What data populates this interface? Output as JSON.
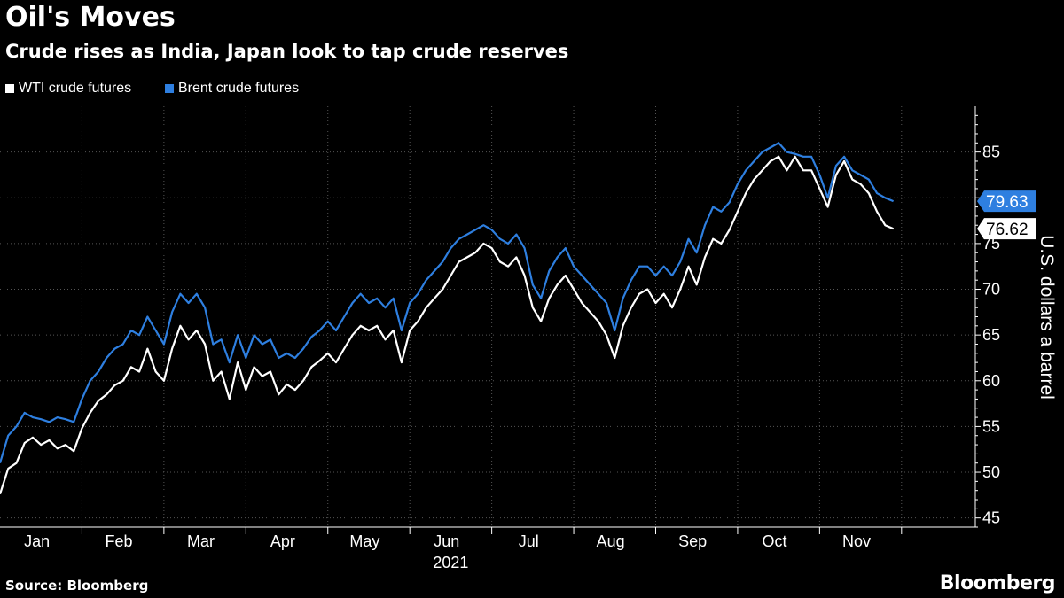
{
  "chart_data": {
    "type": "line",
    "title": "Oil's Moves",
    "subtitle": "Crude rises as India, Japan look to tap crude reserves",
    "ylabel": "U.S. dollars a barrel",
    "year_label": "2021",
    "ylim": [
      44,
      90
    ],
    "yticks": [
      45,
      50,
      55,
      60,
      65,
      70,
      75,
      80,
      85
    ],
    "months": [
      "Jan",
      "Feb",
      "Mar",
      "Apr",
      "May",
      "Jun",
      "Jul",
      "Aug",
      "Sep",
      "Oct",
      "Nov"
    ],
    "x_range": [
      0,
      11.9
    ],
    "grid": true,
    "legend_position": "top-left",
    "series": [
      {
        "name": "WTI crude futures",
        "color": "#ffffff",
        "last_value": "76.62",
        "points": [
          [
            0.0,
            47.6
          ],
          [
            0.1,
            50.4
          ],
          [
            0.2,
            51.0
          ],
          [
            0.3,
            53.2
          ],
          [
            0.4,
            53.8
          ],
          [
            0.5,
            53.0
          ],
          [
            0.6,
            53.5
          ],
          [
            0.7,
            52.6
          ],
          [
            0.8,
            53.0
          ],
          [
            0.9,
            52.3
          ],
          [
            1.0,
            54.8
          ],
          [
            1.1,
            56.5
          ],
          [
            1.2,
            57.8
          ],
          [
            1.3,
            58.5
          ],
          [
            1.4,
            59.5
          ],
          [
            1.5,
            60.0
          ],
          [
            1.6,
            61.5
          ],
          [
            1.7,
            61.0
          ],
          [
            1.8,
            63.5
          ],
          [
            1.9,
            61.0
          ],
          [
            2.0,
            60.0
          ],
          [
            2.1,
            63.5
          ],
          [
            2.2,
            66.0
          ],
          [
            2.3,
            64.5
          ],
          [
            2.4,
            65.5
          ],
          [
            2.5,
            64.0
          ],
          [
            2.6,
            60.0
          ],
          [
            2.7,
            61.0
          ],
          [
            2.8,
            58.0
          ],
          [
            2.9,
            62.0
          ],
          [
            3.0,
            59.0
          ],
          [
            3.1,
            61.5
          ],
          [
            3.2,
            60.5
          ],
          [
            3.3,
            61.0
          ],
          [
            3.4,
            58.5
          ],
          [
            3.5,
            59.6
          ],
          [
            3.6,
            59.0
          ],
          [
            3.7,
            60.0
          ],
          [
            3.8,
            61.5
          ],
          [
            3.9,
            62.2
          ],
          [
            4.0,
            63.0
          ],
          [
            4.1,
            62.0
          ],
          [
            4.2,
            63.5
          ],
          [
            4.3,
            65.0
          ],
          [
            4.4,
            66.0
          ],
          [
            4.5,
            65.5
          ],
          [
            4.6,
            66.0
          ],
          [
            4.7,
            64.5
          ],
          [
            4.8,
            65.5
          ],
          [
            4.9,
            62.0
          ],
          [
            5.0,
            65.5
          ],
          [
            5.1,
            66.5
          ],
          [
            5.2,
            68.0
          ],
          [
            5.3,
            69.0
          ],
          [
            5.4,
            70.0
          ],
          [
            5.5,
            71.5
          ],
          [
            5.6,
            73.0
          ],
          [
            5.7,
            73.5
          ],
          [
            5.8,
            74.0
          ],
          [
            5.9,
            75.0
          ],
          [
            6.0,
            74.5
          ],
          [
            6.1,
            73.0
          ],
          [
            6.2,
            72.5
          ],
          [
            6.3,
            73.5
          ],
          [
            6.4,
            71.5
          ],
          [
            6.5,
            68.0
          ],
          [
            6.6,
            66.5
          ],
          [
            6.7,
            69.0
          ],
          [
            6.8,
            70.5
          ],
          [
            6.9,
            71.5
          ],
          [
            7.0,
            70.0
          ],
          [
            7.1,
            68.5
          ],
          [
            7.2,
            67.5
          ],
          [
            7.3,
            66.5
          ],
          [
            7.4,
            65.0
          ],
          [
            7.5,
            62.5
          ],
          [
            7.6,
            66.0
          ],
          [
            7.7,
            68.0
          ],
          [
            7.8,
            69.5
          ],
          [
            7.9,
            70.0
          ],
          [
            8.0,
            68.5
          ],
          [
            8.1,
            69.5
          ],
          [
            8.2,
            68.0
          ],
          [
            8.3,
            70.0
          ],
          [
            8.4,
            72.5
          ],
          [
            8.5,
            70.5
          ],
          [
            8.6,
            73.5
          ],
          [
            8.7,
            75.5
          ],
          [
            8.8,
            75.0
          ],
          [
            8.9,
            76.5
          ],
          [
            9.0,
            78.5
          ],
          [
            9.1,
            80.5
          ],
          [
            9.2,
            82.0
          ],
          [
            9.3,
            83.0
          ],
          [
            9.4,
            84.0
          ],
          [
            9.5,
            84.5
          ],
          [
            9.6,
            83.0
          ],
          [
            9.7,
            84.5
          ],
          [
            9.8,
            83.0
          ],
          [
            9.9,
            83.0
          ],
          [
            10.0,
            81.0
          ],
          [
            10.1,
            79.0
          ],
          [
            10.2,
            82.5
          ],
          [
            10.3,
            84.0
          ],
          [
            10.4,
            82.0
          ],
          [
            10.5,
            81.5
          ],
          [
            10.6,
            80.5
          ],
          [
            10.7,
            78.5
          ],
          [
            10.8,
            77.0
          ],
          [
            10.9,
            76.62
          ]
        ]
      },
      {
        "name": "Brent crude futures",
        "color": "#2e7fe0",
        "last_value": "79.63",
        "points": [
          [
            0.0,
            51.0
          ],
          [
            0.1,
            54.0
          ],
          [
            0.2,
            55.0
          ],
          [
            0.3,
            56.5
          ],
          [
            0.4,
            56.0
          ],
          [
            0.5,
            55.8
          ],
          [
            0.6,
            55.5
          ],
          [
            0.7,
            56.0
          ],
          [
            0.8,
            55.8
          ],
          [
            0.9,
            55.5
          ],
          [
            1.0,
            58.0
          ],
          [
            1.1,
            60.0
          ],
          [
            1.2,
            61.0
          ],
          [
            1.3,
            62.5
          ],
          [
            1.4,
            63.5
          ],
          [
            1.5,
            64.0
          ],
          [
            1.6,
            65.5
          ],
          [
            1.7,
            65.0
          ],
          [
            1.8,
            67.0
          ],
          [
            1.9,
            65.5
          ],
          [
            2.0,
            64.0
          ],
          [
            2.1,
            67.5
          ],
          [
            2.2,
            69.5
          ],
          [
            2.3,
            68.5
          ],
          [
            2.4,
            69.5
          ],
          [
            2.5,
            68.0
          ],
          [
            2.6,
            64.0
          ],
          [
            2.7,
            64.5
          ],
          [
            2.8,
            62.0
          ],
          [
            2.9,
            65.0
          ],
          [
            3.0,
            62.5
          ],
          [
            3.1,
            65.0
          ],
          [
            3.2,
            64.0
          ],
          [
            3.3,
            64.5
          ],
          [
            3.4,
            62.5
          ],
          [
            3.5,
            63.0
          ],
          [
            3.6,
            62.5
          ],
          [
            3.7,
            63.5
          ],
          [
            3.8,
            64.8
          ],
          [
            3.9,
            65.5
          ],
          [
            4.0,
            66.5
          ],
          [
            4.1,
            65.5
          ],
          [
            4.2,
            67.0
          ],
          [
            4.3,
            68.5
          ],
          [
            4.4,
            69.5
          ],
          [
            4.5,
            68.5
          ],
          [
            4.6,
            69.0
          ],
          [
            4.7,
            68.0
          ],
          [
            4.8,
            69.0
          ],
          [
            4.9,
            65.5
          ],
          [
            5.0,
            68.5
          ],
          [
            5.1,
            69.5
          ],
          [
            5.2,
            71.0
          ],
          [
            5.3,
            72.0
          ],
          [
            5.4,
            73.0
          ],
          [
            5.5,
            74.5
          ],
          [
            5.6,
            75.5
          ],
          [
            5.7,
            76.0
          ],
          [
            5.8,
            76.5
          ],
          [
            5.9,
            77.0
          ],
          [
            6.0,
            76.5
          ],
          [
            6.1,
            75.5
          ],
          [
            6.2,
            75.0
          ],
          [
            6.3,
            76.0
          ],
          [
            6.4,
            74.5
          ],
          [
            6.5,
            70.5
          ],
          [
            6.6,
            69.0
          ],
          [
            6.7,
            72.0
          ],
          [
            6.8,
            73.5
          ],
          [
            6.9,
            74.5
          ],
          [
            7.0,
            72.5
          ],
          [
            7.1,
            71.5
          ],
          [
            7.2,
            70.5
          ],
          [
            7.3,
            69.5
          ],
          [
            7.4,
            68.5
          ],
          [
            7.5,
            65.5
          ],
          [
            7.6,
            69.0
          ],
          [
            7.7,
            71.0
          ],
          [
            7.8,
            72.5
          ],
          [
            7.9,
            72.5
          ],
          [
            8.0,
            71.5
          ],
          [
            8.1,
            72.5
          ],
          [
            8.2,
            71.5
          ],
          [
            8.3,
            73.0
          ],
          [
            8.4,
            75.5
          ],
          [
            8.5,
            74.0
          ],
          [
            8.6,
            77.0
          ],
          [
            8.7,
            79.0
          ],
          [
            8.8,
            78.5
          ],
          [
            8.9,
            79.5
          ],
          [
            9.0,
            81.5
          ],
          [
            9.1,
            83.0
          ],
          [
            9.2,
            84.0
          ],
          [
            9.3,
            85.0
          ],
          [
            9.4,
            85.5
          ],
          [
            9.5,
            86.0
          ],
          [
            9.6,
            85.0
          ],
          [
            9.7,
            84.8
          ],
          [
            9.8,
            84.5
          ],
          [
            9.9,
            84.5
          ],
          [
            10.0,
            82.5
          ],
          [
            10.1,
            80.0
          ],
          [
            10.2,
            83.5
          ],
          [
            10.3,
            84.5
          ],
          [
            10.4,
            83.0
          ],
          [
            10.5,
            82.5
          ],
          [
            10.6,
            82.0
          ],
          [
            10.7,
            80.5
          ],
          [
            10.8,
            80.0
          ],
          [
            10.9,
            79.63
          ]
        ]
      }
    ]
  },
  "source": "Source: Bloomberg",
  "brand": "Bloomberg"
}
